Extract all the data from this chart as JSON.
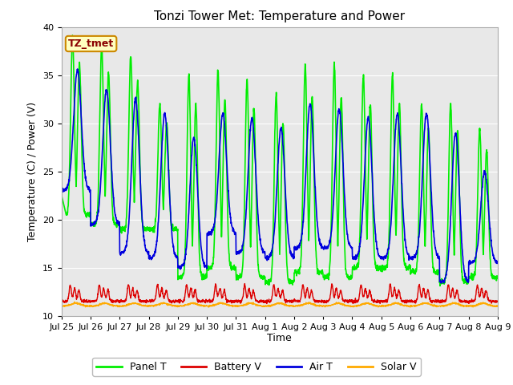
{
  "title": "Tonzi Tower Met: Temperature and Power",
  "xlabel": "Time",
  "ylabel": "Temperature (C) / Power (V)",
  "ylim": [
    10,
    40
  ],
  "background_color": "#ffffff",
  "plot_bg_color": "#e8e8e8",
  "legend_label": "TZ_tmet",
  "series": {
    "panel_t": {
      "color": "#00ee00",
      "label": "Panel T",
      "lw": 1.2
    },
    "battery_v": {
      "color": "#dd0000",
      "label": "Battery V",
      "lw": 1.0
    },
    "air_t": {
      "color": "#0000dd",
      "label": "Air T",
      "lw": 1.2
    },
    "solar_v": {
      "color": "#ffaa00",
      "label": "Solar V",
      "lw": 1.0
    }
  },
  "tick_labels": [
    "Jul 25",
    "Jul 26",
    "Jul 27",
    "Jul 28",
    "Jul 29",
    "Jul 30",
    "Jul 31",
    "Aug 1",
    "Aug 2",
    "Aug 3",
    "Aug 4",
    "Aug 5",
    "Aug 6",
    "Aug 7",
    "Aug 8",
    "Aug 9"
  ],
  "n_days": 15,
  "pts_per_day": 144,
  "panel_peaks": [
    39,
    38,
    37,
    32,
    35,
    35.5,
    34.5,
    33,
    36,
    36,
    35,
    35,
    32,
    32,
    29.5
  ],
  "panel_mins": [
    20.5,
    19.5,
    19,
    19,
    14,
    15,
    14,
    13.5,
    14.5,
    14,
    15,
    15,
    14.5,
    13.5,
    14
  ],
  "air_peaks": [
    35.5,
    33.5,
    32.5,
    31,
    28.5,
    31,
    30.5,
    29.5,
    32,
    31.5,
    30.5,
    31,
    31,
    29,
    25
  ],
  "air_mins": [
    23,
    19.5,
    16.5,
    16,
    15,
    18.5,
    16.5,
    16,
    17,
    17,
    16,
    16,
    16,
    13.5,
    15.5
  ],
  "battery_base": 11.5,
  "battery_spike_max": 13.2,
  "solar_base": 11.0,
  "title_fontsize": 11,
  "axis_fontsize": 9,
  "tick_fontsize": 8
}
